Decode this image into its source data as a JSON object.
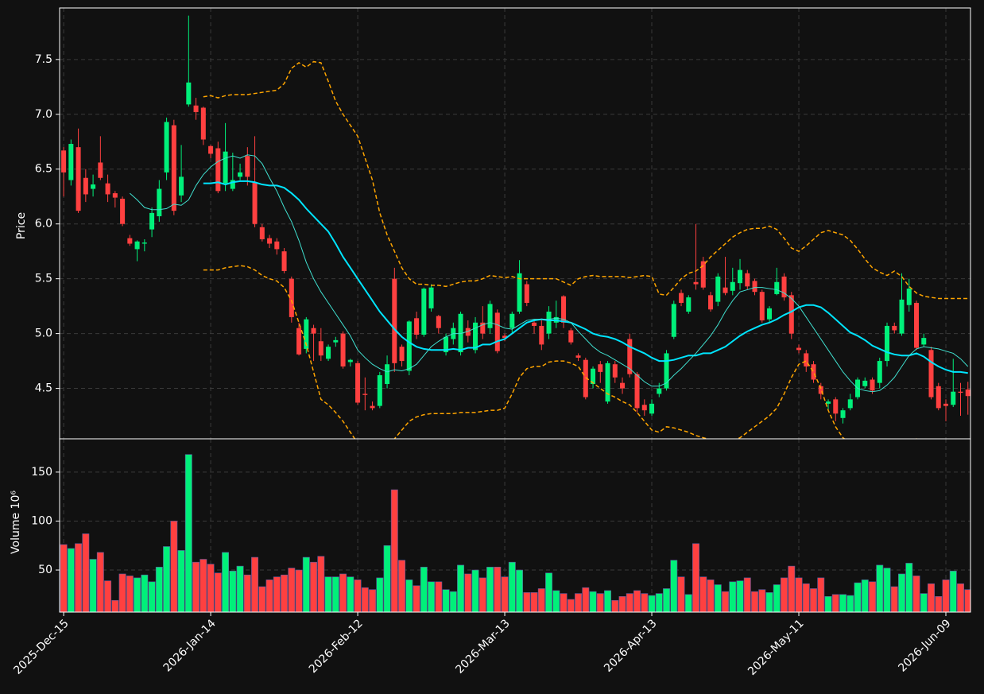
{
  "chart_data": {
    "type": "candlestick",
    "y_label": "Price",
    "xlim": [
      -0.55,
      123.35
    ],
    "xticks": [
      {
        "value": 0,
        "label": "2025-Dec-15"
      },
      {
        "value": 20,
        "label": "2026-Jan-14"
      },
      {
        "value": 40,
        "label": "2026-Feb-12"
      },
      {
        "value": 60,
        "label": "2026-Mar-13"
      },
      {
        "value": 80,
        "label": "2026-Apr-13"
      },
      {
        "value": 100,
        "label": "2026-May-11"
      },
      {
        "value": 120,
        "label": "2026-Jun-09"
      }
    ],
    "ylim": [
      4.04,
      7.97
    ],
    "yticks": [
      4.5,
      {
        "value": 5,
        "label": "5.0"
      },
      5.5,
      {
        "value": 6,
        "label": "6.0"
      },
      6.5,
      {
        "value": 7,
        "label": "7.0"
      },
      7.5
    ],
    "grid": true,
    "up_color": "#00f07a",
    "down_color": "#ff4040",
    "open": [
      6.67,
      6.4,
      6.7,
      6.42,
      6.32,
      6.56,
      6.37,
      6.28,
      6.23,
      5.87,
      5.77,
      5.82,
      5.95,
      6.07,
      6.47,
      6.9,
      6.26,
      7.09,
      7.08,
      7.06,
      6.71,
      6.69,
      6.37,
      6.32,
      6.43,
      6.62,
      6.38,
      5.97,
      5.87,
      5.84,
      5.75,
      5.5,
      5.05,
      4.86,
      5.05,
      4.93,
      4.77,
      4.92,
      5.0,
      4.74,
      4.73,
      4.45,
      4.34,
      4.34,
      4.54,
      5.5,
      4.88,
      4.66,
      5.14,
      4.99,
      5.23,
      5.16,
      4.83,
      4.95,
      4.83,
      5.05,
      4.85,
      5.1,
      5.05,
      5.19,
      4.98,
      5.05,
      5.2,
      5.45,
      5.1,
      5.07,
      5.0,
      5.1,
      5.34,
      5.03,
      4.8,
      4.76,
      4.54,
      4.72,
      4.38,
      4.72,
      4.55,
      4.95,
      4.63,
      4.35,
      4.27,
      4.45,
      4.5,
      4.97,
      5.37,
      5.2,
      5.47,
      5.66,
      5.35,
      5.29,
      5.42,
      5.39,
      5.46,
      5.55,
      5.48,
      5.38,
      5.13,
      5.36,
      5.52,
      5.35,
      4.87,
      4.82,
      4.72,
      4.52,
      4.36,
      4.4,
      4.23,
      4.32,
      4.42,
      4.52,
      4.58,
      4.55,
      4.75,
      5.07,
      5.0,
      5.26,
      5.28,
      4.9,
      4.85,
      4.52,
      4.36,
      4.35,
      4.47,
      4.49
    ],
    "high": [
      6.7,
      6.77,
      6.87,
      6.5,
      6.45,
      6.8,
      6.45,
      6.3,
      6.25,
      5.9,
      5.85,
      5.86,
      6.15,
      6.4,
      6.97,
      6.95,
      6.72,
      7.9,
      7.15,
      7.07,
      6.72,
      6.75,
      6.92,
      6.65,
      6.55,
      6.7,
      6.8,
      6.0,
      5.9,
      5.87,
      5.78,
      5.52,
      5.1,
      5.15,
      5.08,
      5.05,
      4.9,
      4.97,
      5.02,
      4.77,
      4.75,
      4.6,
      4.38,
      4.65,
      4.8,
      5.6,
      4.9,
      5.12,
      5.2,
      5.42,
      5.45,
      5.17,
      5.0,
      5.1,
      5.2,
      5.12,
      5.15,
      5.25,
      5.3,
      5.22,
      5.0,
      5.2,
      5.67,
      5.48,
      5.12,
      5.12,
      5.25,
      5.3,
      5.35,
      5.05,
      4.82,
      4.78,
      4.7,
      4.75,
      4.75,
      4.75,
      4.6,
      5.0,
      4.65,
      4.4,
      4.4,
      4.55,
      4.85,
      5.3,
      5.4,
      5.35,
      6.0,
      5.7,
      5.38,
      5.55,
      5.7,
      5.6,
      5.68,
      5.58,
      5.5,
      5.4,
      5.25,
      5.6,
      5.55,
      5.38,
      4.9,
      4.85,
      4.75,
      4.55,
      4.4,
      4.42,
      4.32,
      4.45,
      4.6,
      4.6,
      4.6,
      4.78,
      5.1,
      5.1,
      5.55,
      5.5,
      5.3,
      5.0,
      4.88,
      4.55,
      4.4,
      4.77,
      4.55,
      4.56
    ],
    "low": [
      6.25,
      6.35,
      6.1,
      6.2,
      6.25,
      6.4,
      6.2,
      6.15,
      5.98,
      5.8,
      5.66,
      5.75,
      5.88,
      6.02,
      6.4,
      6.08,
      6.2,
      7.07,
      6.95,
      6.72,
      6.6,
      6.28,
      6.3,
      6.3,
      6.4,
      6.35,
      5.97,
      5.84,
      5.78,
      5.72,
      5.55,
      5.1,
      4.8,
      4.82,
      4.75,
      4.75,
      4.75,
      4.88,
      4.68,
      4.7,
      4.35,
      4.3,
      4.3,
      4.32,
      4.5,
      4.65,
      4.7,
      4.62,
      4.95,
      4.97,
      5.2,
      5.0,
      4.8,
      4.9,
      4.8,
      4.92,
      4.82,
      4.95,
      5.0,
      4.82,
      4.93,
      5.0,
      5.18,
      5.25,
      5.0,
      4.85,
      4.95,
      5.05,
      5.05,
      4.9,
      4.75,
      4.4,
      4.5,
      4.55,
      4.36,
      4.55,
      4.45,
      4.6,
      4.28,
      4.25,
      4.25,
      4.42,
      4.48,
      4.95,
      5.25,
      5.18,
      5.4,
      5.4,
      5.2,
      5.25,
      5.35,
      5.35,
      5.4,
      5.4,
      5.35,
      5.1,
      5.1,
      5.35,
      5.3,
      4.95,
      4.82,
      4.65,
      4.55,
      4.4,
      4.3,
      4.2,
      4.18,
      4.3,
      4.4,
      4.5,
      4.45,
      4.5,
      4.7,
      5.0,
      4.98,
      5.2,
      4.85,
      4.88,
      4.4,
      4.3,
      4.2,
      4.33,
      4.25,
      4.26
    ],
    "close": [
      6.47,
      6.73,
      6.12,
      6.27,
      6.36,
      6.42,
      6.27,
      6.24,
      6.0,
      5.82,
      5.84,
      5.83,
      6.1,
      6.32,
      6.93,
      6.12,
      6.43,
      7.29,
      7.02,
      6.77,
      6.64,
      6.3,
      6.66,
      6.4,
      6.47,
      6.43,
      6.0,
      5.86,
      5.82,
      5.77,
      5.57,
      5.15,
      4.81,
      5.13,
      5.0,
      4.8,
      4.88,
      4.94,
      4.7,
      4.76,
      4.37,
      4.44,
      4.32,
      4.62,
      4.72,
      4.73,
      4.75,
      5.11,
      4.99,
      5.41,
      5.42,
      5.05,
      4.97,
      5.05,
      5.18,
      4.98,
      5.1,
      5.0,
      5.27,
      4.84,
      4.96,
      5.18,
      5.55,
      5.28,
      5.07,
      4.9,
      5.2,
      5.15,
      5.1,
      4.92,
      4.78,
      4.42,
      4.68,
      4.65,
      4.73,
      4.6,
      4.5,
      4.63,
      4.32,
      4.3,
      4.36,
      4.5,
      4.82,
      5.27,
      5.28,
      5.33,
      5.45,
      5.42,
      5.22,
      5.52,
      5.37,
      5.47,
      5.58,
      5.43,
      5.38,
      5.12,
      5.23,
      5.47,
      5.33,
      5.0,
      4.85,
      4.7,
      4.58,
      4.45,
      4.38,
      4.27,
      4.3,
      4.4,
      4.58,
      4.57,
      4.48,
      4.75,
      5.07,
      5.03,
      5.31,
      5.41,
      4.87,
      4.96,
      4.42,
      4.32,
      4.34,
      4.47,
      4.46,
      4.43
    ],
    "lines": [
      {
        "color": "#ffa500",
        "style": "dashed",
        "values": [
          null,
          null,
          null,
          null,
          null,
          null,
          null,
          null,
          null,
          null,
          null,
          null,
          null,
          null,
          null,
          null,
          null,
          null,
          null,
          7.16,
          7.17,
          7.15,
          7.17,
          7.18,
          7.18,
          7.18,
          7.19,
          7.2,
          7.21,
          7.22,
          7.28,
          7.42,
          7.47,
          7.43,
          7.48,
          7.47,
          7.3,
          7.12,
          7.0,
          6.9,
          6.8,
          6.6,
          6.4,
          6.1,
          5.9,
          5.75,
          5.6,
          5.5,
          5.45,
          5.45,
          5.44,
          5.44,
          5.43,
          5.45,
          5.47,
          5.48,
          5.48,
          5.5,
          5.53,
          5.52,
          5.51,
          5.52,
          5.5,
          5.5,
          5.5,
          5.5,
          5.5,
          5.5,
          5.47,
          5.44,
          5.5,
          5.52,
          5.53,
          5.52,
          5.52,
          5.52,
          5.52,
          5.51,
          5.52,
          5.53,
          5.52,
          5.36,
          5.35,
          5.42,
          5.5,
          5.55,
          5.57,
          5.62,
          5.7,
          5.76,
          5.82,
          5.88,
          5.92,
          5.95,
          5.96,
          5.96,
          5.98,
          5.95,
          5.87,
          5.78,
          5.75,
          5.8,
          5.86,
          5.92,
          5.94,
          5.92,
          5.9,
          5.85,
          5.77,
          5.68,
          5.6,
          5.56,
          5.53,
          5.57,
          5.52,
          5.43,
          5.37,
          5.34,
          5.33,
          5.32,
          5.32,
          5.32,
          5.32,
          5.32
        ]
      },
      {
        "color": "#ffa500",
        "style": "dashed",
        "values": [
          null,
          null,
          null,
          null,
          null,
          null,
          null,
          null,
          null,
          null,
          null,
          null,
          null,
          null,
          null,
          null,
          null,
          null,
          null,
          5.58,
          5.58,
          5.58,
          5.6,
          5.61,
          5.62,
          5.61,
          5.58,
          5.53,
          5.5,
          5.48,
          5.42,
          5.3,
          5.1,
          4.9,
          4.65,
          4.4,
          4.35,
          4.28,
          4.2,
          4.1,
          4.0,
          3.92,
          3.88,
          3.88,
          3.95,
          4.04,
          4.12,
          4.2,
          4.24,
          4.26,
          4.27,
          4.27,
          4.27,
          4.27,
          4.28,
          4.28,
          4.28,
          4.29,
          4.3,
          4.3,
          4.32,
          4.45,
          4.6,
          4.68,
          4.7,
          4.7,
          4.74,
          4.75,
          4.75,
          4.73,
          4.7,
          4.6,
          4.55,
          4.5,
          4.45,
          4.42,
          4.38,
          4.35,
          4.28,
          4.2,
          4.12,
          4.1,
          4.15,
          4.14,
          4.12,
          4.1,
          4.07,
          4.05,
          4.03,
          4.02,
          4.0,
          4.02,
          4.05,
          4.1,
          4.15,
          4.2,
          4.25,
          4.32,
          4.45,
          4.6,
          4.72,
          4.75,
          4.65,
          4.5,
          4.3,
          4.15,
          4.05,
          4.0,
          3.98,
          3.96,
          3.95,
          3.96,
          3.98,
          3.98,
          3.99,
          3.98,
          4.04,
          4.03,
          3.98,
          3.93,
          3.9,
          3.89,
          3.88,
          3.88
        ]
      },
      {
        "color": "#00e5ff",
        "style": "bold",
        "values": [
          null,
          null,
          null,
          null,
          null,
          null,
          null,
          null,
          null,
          null,
          null,
          null,
          null,
          null,
          null,
          null,
          null,
          null,
          null,
          6.37,
          6.37,
          6.38,
          6.36,
          6.38,
          6.39,
          6.39,
          6.38,
          6.36,
          6.35,
          6.35,
          6.33,
          6.28,
          6.22,
          6.14,
          6.07,
          6.0,
          5.93,
          5.82,
          5.7,
          5.6,
          5.5,
          5.4,
          5.3,
          5.2,
          5.12,
          5.04,
          4.97,
          4.92,
          4.88,
          4.86,
          4.85,
          4.85,
          4.85,
          4.86,
          4.85,
          4.87,
          4.87,
          4.9,
          4.9,
          4.93,
          4.95,
          5.0,
          5.05,
          5.1,
          5.12,
          5.13,
          5.12,
          5.12,
          5.11,
          5.1,
          5.07,
          5.04,
          5.0,
          4.98,
          4.97,
          4.95,
          4.92,
          4.88,
          4.85,
          4.82,
          4.78,
          4.75,
          4.75,
          4.76,
          4.78,
          4.8,
          4.8,
          4.82,
          4.82,
          4.85,
          4.88,
          4.93,
          4.98,
          5.02,
          5.05,
          5.08,
          5.1,
          5.13,
          5.17,
          5.2,
          5.24,
          5.26,
          5.26,
          5.24,
          5.19,
          5.13,
          5.07,
          5.01,
          4.98,
          4.94,
          4.89,
          4.86,
          4.83,
          4.81,
          4.8,
          4.8,
          4.82,
          4.79,
          4.74,
          4.7,
          4.67,
          4.65,
          4.65,
          4.64
        ]
      },
      {
        "color": "#40e0d0",
        "style": "thin",
        "values": [
          null,
          null,
          null,
          null,
          null,
          null,
          null,
          null,
          null,
          6.28,
          6.22,
          6.15,
          6.13,
          6.13,
          6.14,
          6.18,
          6.17,
          6.22,
          6.35,
          6.45,
          6.52,
          6.57,
          6.6,
          6.62,
          6.6,
          6.63,
          6.62,
          6.55,
          6.42,
          6.3,
          6.15,
          6.02,
          5.85,
          5.65,
          5.5,
          5.38,
          5.28,
          5.18,
          5.08,
          4.98,
          4.85,
          4.78,
          4.72,
          4.68,
          4.65,
          4.67,
          4.66,
          4.68,
          4.72,
          4.8,
          4.88,
          4.93,
          4.97,
          5.0,
          5.0,
          5.02,
          5.05,
          5.08,
          5.1,
          5.08,
          5.05,
          5.04,
          5.08,
          5.12,
          5.13,
          5.13,
          5.13,
          5.14,
          5.13,
          5.1,
          5.02,
          4.95,
          4.88,
          4.83,
          4.8,
          4.76,
          4.72,
          4.68,
          4.62,
          4.56,
          4.52,
          4.52,
          4.55,
          4.62,
          4.68,
          4.75,
          4.82,
          4.9,
          4.98,
          5.08,
          5.2,
          5.3,
          5.38,
          5.4,
          5.42,
          5.42,
          5.41,
          5.4,
          5.37,
          5.32,
          5.25,
          5.15,
          5.05,
          4.95,
          4.85,
          4.75,
          4.65,
          4.57,
          4.5,
          4.48,
          4.47,
          4.48,
          4.53,
          4.6,
          4.7,
          4.8,
          4.86,
          4.88,
          4.87,
          4.86,
          4.84,
          4.82,
          4.77,
          4.7
        ]
      }
    ],
    "volume": {
      "y_label": "Volume  10⁶",
      "ylim": [
        7,
        184
      ],
      "yticks": [
        50,
        100,
        150
      ],
      "values": [
        76,
        72,
        77,
        87,
        61,
        68,
        39,
        19,
        46,
        44,
        42,
        45,
        38,
        53,
        74,
        100,
        70,
        168,
        58,
        61,
        56,
        47,
        68,
        49,
        54,
        45,
        63,
        33,
        40,
        43,
        45,
        52,
        50,
        63,
        58,
        64,
        43,
        43,
        46,
        43,
        40,
        32,
        30,
        42,
        75,
        132,
        60,
        40,
        34,
        53,
        38,
        38,
        30,
        28,
        55,
        46,
        50,
        42,
        53,
        53,
        43,
        58,
        50,
        27,
        27,
        31,
        47,
        29,
        26,
        20,
        26,
        32,
        28,
        26,
        29,
        19,
        23,
        26,
        29,
        26,
        24,
        26,
        31,
        60,
        43,
        25,
        77,
        43,
        40,
        35,
        28,
        38,
        39,
        42,
        28,
        30,
        27,
        35,
        42,
        54,
        42,
        36,
        31,
        42,
        23,
        25,
        25,
        24,
        37,
        40,
        38,
        55,
        52,
        33,
        46,
        57,
        44,
        26,
        36,
        23,
        40,
        49,
        36,
        30
      ]
    }
  }
}
